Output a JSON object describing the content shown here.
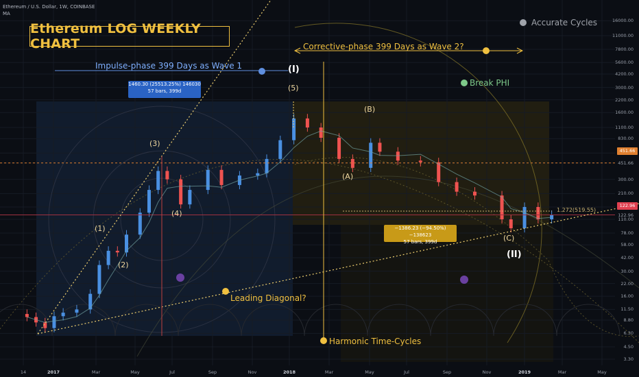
{
  "header": {
    "symbol": "Ethereum / U.S. Dollar, 1W, COINBASE",
    "indicator": "MA"
  },
  "title": "Ethereum LOG WEEKLY CHART",
  "legend": {
    "dot_label": "Accurate Cycles"
  },
  "annotations": {
    "impulse": "Impulse-phase 399 Days as Wave 1",
    "corrective": "Corrective-phase 399 Days as Wave 2?",
    "break_phi": "Break PHI",
    "leading_diagonal": "Leading Diagonal?",
    "harmonic": "Harmonic Time-Cycles",
    "fib_ratio": "1.272(519.55)"
  },
  "waves": {
    "w1": "(1)",
    "w2": "(2)",
    "w3": "(3)",
    "w4": "(4)",
    "w5": "(5)",
    "wI": "(I)",
    "wA": "(A)",
    "wB": "(B)",
    "wC": "(C)",
    "wII": "(II)"
  },
  "measure_up": {
    "line1": "1460.30 (25513.25%) 146030",
    "line2": "57 bars, 399d"
  },
  "measure_down": {
    "line1": "−1386.23 (−94.50%) −138623",
    "line2": "57 bars, 399d"
  },
  "price_tags": {
    "upper": "451.66",
    "current": "122.96"
  },
  "axes": {
    "y_ticks": [
      "16000.00",
      "11000.00",
      "7800.00",
      "5600.00",
      "4200.00",
      "3000.00",
      "2200.00",
      "1600.00",
      "1100.00",
      "830.00",
      "580.00",
      "451.66",
      "300.00",
      "210.00",
      "150.00",
      "122.96",
      "110.00",
      "78.00",
      "58.00",
      "42.00",
      "30.00",
      "22.00",
      "16.00",
      "11.50",
      "8.80",
      "6.30",
      "4.50",
      "3.30"
    ],
    "x_ticks": [
      "14",
      "2017",
      "Mar",
      "May",
      "Jul",
      "Sep",
      "Nov",
      "2018",
      "Mar",
      "May",
      "Jul",
      "Sep",
      "Nov",
      "2019",
      "Mar",
      "May"
    ]
  },
  "colors": {
    "up": "#4a90e2",
    "down": "#ef5350",
    "accent": "#f0c040",
    "bg": "#0b0e14"
  },
  "chart_data": {
    "type": "candlestick",
    "title": "Ethereum LOG WEEKLY CHART",
    "scale": "log",
    "ylim": [
      3.3,
      16000
    ],
    "x_range": [
      "2016-11",
      "2019-05"
    ],
    "weekly_close_approx": [
      {
        "date": "2016-11-21",
        "close": 9.5
      },
      {
        "date": "2016-12-05",
        "close": 8.3
      },
      {
        "date": "2016-12-19",
        "close": 7.2
      },
      {
        "date": "2017-01-02",
        "close": 9.7
      },
      {
        "date": "2017-01-16",
        "close": 10.6
      },
      {
        "date": "2017-02-06",
        "close": 11.5
      },
      {
        "date": "2017-02-27",
        "close": 17.0
      },
      {
        "date": "2017-03-13",
        "close": 35.0
      },
      {
        "date": "2017-03-27",
        "close": 50.0
      },
      {
        "date": "2017-04-10",
        "close": 48.0
      },
      {
        "date": "2017-04-24",
        "close": 75.0
      },
      {
        "date": "2017-05-15",
        "close": 130.0
      },
      {
        "date": "2017-05-29",
        "close": 230.0
      },
      {
        "date": "2017-06-12",
        "close": 370.0
      },
      {
        "date": "2017-06-26",
        "close": 300.0
      },
      {
        "date": "2017-07-17",
        "close": 160.0
      },
      {
        "date": "2017-07-31",
        "close": 230.0
      },
      {
        "date": "2017-08-28",
        "close": 380.0
      },
      {
        "date": "2017-09-18",
        "close": 260.0
      },
      {
        "date": "2017-10-16",
        "close": 330.0
      },
      {
        "date": "2017-11-13",
        "close": 350.0
      },
      {
        "date": "2017-11-27",
        "close": 500.0
      },
      {
        "date": "2017-12-18",
        "close": 800.0
      },
      {
        "date": "2018-01-08",
        "close": 1380.0
      },
      {
        "date": "2018-01-29",
        "close": 1100.0
      },
      {
        "date": "2018-02-19",
        "close": 850.0
      },
      {
        "date": "2018-03-19",
        "close": 500.0
      },
      {
        "date": "2018-04-09",
        "close": 400.0
      },
      {
        "date": "2018-05-07",
        "close": 750.0
      },
      {
        "date": "2018-05-21",
        "close": 600.0
      },
      {
        "date": "2018-06-18",
        "close": 480.0
      },
      {
        "date": "2018-07-23",
        "close": 460.0
      },
      {
        "date": "2018-08-20",
        "close": 280.0
      },
      {
        "date": "2018-09-17",
        "close": 220.0
      },
      {
        "date": "2018-10-15",
        "close": 200.0
      },
      {
        "date": "2018-11-26",
        "close": 110.0
      },
      {
        "date": "2018-12-10",
        "close": 88.0
      },
      {
        "date": "2018-12-31",
        "close": 150.0
      },
      {
        "date": "2019-01-21",
        "close": 110.0
      },
      {
        "date": "2019-02-11",
        "close": 122.96
      }
    ],
    "cycle_high": {
      "label": "(I)",
      "price": 1460.3,
      "pct_change": "25513.25%",
      "bars": 57,
      "days": 399
    },
    "cycle_drop": {
      "price_change": -1386.23,
      "pct_change": "-94.50%",
      "bars": 57,
      "days": 399
    },
    "horizontal_levels": [
      451.66,
      122.96
    ]
  }
}
